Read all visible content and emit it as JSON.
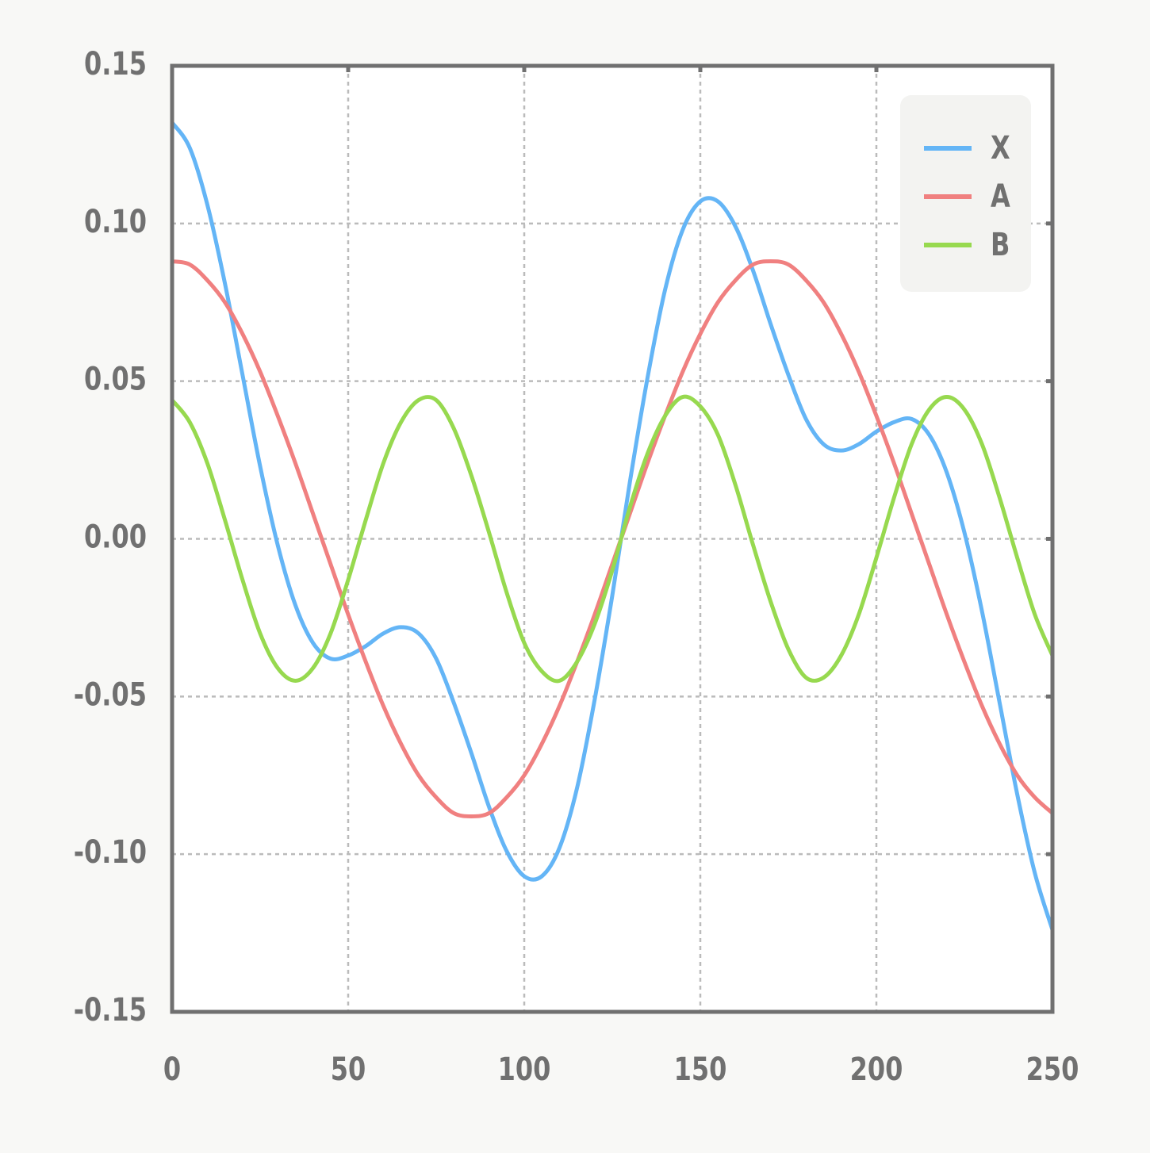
{
  "chart_data": {
    "type": "line",
    "x": [
      0,
      5,
      10,
      15,
      20,
      25,
      30,
      35,
      40,
      45,
      50,
      55,
      60,
      65,
      70,
      75,
      80,
      85,
      90,
      95,
      100,
      105,
      110,
      115,
      120,
      125,
      130,
      135,
      140,
      145,
      150,
      155,
      160,
      165,
      170,
      175,
      180,
      185,
      190,
      195,
      200,
      205,
      210,
      215,
      220,
      225,
      230,
      235,
      240,
      245,
      250
    ],
    "series": [
      {
        "name": "X",
        "color": "#64b5f6",
        "values": [
          0.132,
          0.124,
          0.106,
          0.081,
          0.052,
          0.023,
          -0.002,
          -0.021,
          -0.033,
          -0.038,
          -0.037,
          -0.034,
          -0.03,
          -0.028,
          -0.03,
          -0.038,
          -0.052,
          -0.068,
          -0.085,
          -0.099,
          -0.107,
          -0.107,
          -0.098,
          -0.079,
          -0.051,
          -0.018,
          0.018,
          0.051,
          0.079,
          0.098,
          0.107,
          0.107,
          0.099,
          0.085,
          0.068,
          0.052,
          0.038,
          0.03,
          0.028,
          0.03,
          0.034,
          0.037,
          0.038,
          0.033,
          0.021,
          0.002,
          -0.023,
          -0.052,
          -0.081,
          -0.106,
          -0.124
        ]
      },
      {
        "name": "A",
        "color": "#f08080",
        "values": [
          0.088,
          0.087,
          0.082,
          0.075,
          0.065,
          0.053,
          0.039,
          0.024,
          0.008,
          -0.008,
          -0.024,
          -0.039,
          -0.053,
          -0.065,
          -0.075,
          -0.082,
          -0.087,
          -0.088,
          -0.087,
          -0.082,
          -0.075,
          -0.065,
          -0.053,
          -0.039,
          -0.024,
          -0.008,
          0.008,
          0.024,
          0.039,
          0.053,
          0.065,
          0.075,
          0.082,
          0.087,
          0.088,
          0.087,
          0.082,
          0.075,
          0.065,
          0.053,
          0.039,
          0.024,
          0.008,
          -0.008,
          -0.024,
          -0.039,
          -0.053,
          -0.065,
          -0.075,
          -0.082,
          -0.087
        ]
      },
      {
        "name": "B",
        "color": "#97d94f",
        "values": [
          0.044,
          0.037,
          0.024,
          0.006,
          -0.013,
          -0.03,
          -0.041,
          -0.045,
          -0.041,
          -0.03,
          -0.013,
          0.006,
          0.024,
          0.037,
          0.044,
          0.044,
          0.035,
          0.02,
          0.002,
          -0.017,
          -0.033,
          -0.042,
          -0.045,
          -0.039,
          -0.027,
          -0.01,
          0.01,
          0.027,
          0.039,
          0.045,
          0.042,
          0.033,
          0.017,
          -0.002,
          -0.02,
          -0.035,
          -0.044,
          -0.044,
          -0.037,
          -0.024,
          -0.006,
          0.013,
          0.03,
          0.041,
          0.045,
          0.041,
          0.03,
          0.013,
          -0.006,
          -0.024,
          -0.037
        ]
      }
    ],
    "xlim": [
      0,
      250
    ],
    "xticks": [
      0,
      50,
      100,
      150,
      200,
      250
    ],
    "ylim": [
      -0.15,
      0.15
    ],
    "yticks": [
      -0.15,
      {
        "value": -0.1,
        "label": "-0.10"
      },
      -0.05,
      {
        "value": 0,
        "label": "0.00"
      },
      0.05,
      {
        "value": 0.1,
        "label": "0.10"
      },
      0.15
    ],
    "grid": true,
    "legend": "upper right"
  }
}
